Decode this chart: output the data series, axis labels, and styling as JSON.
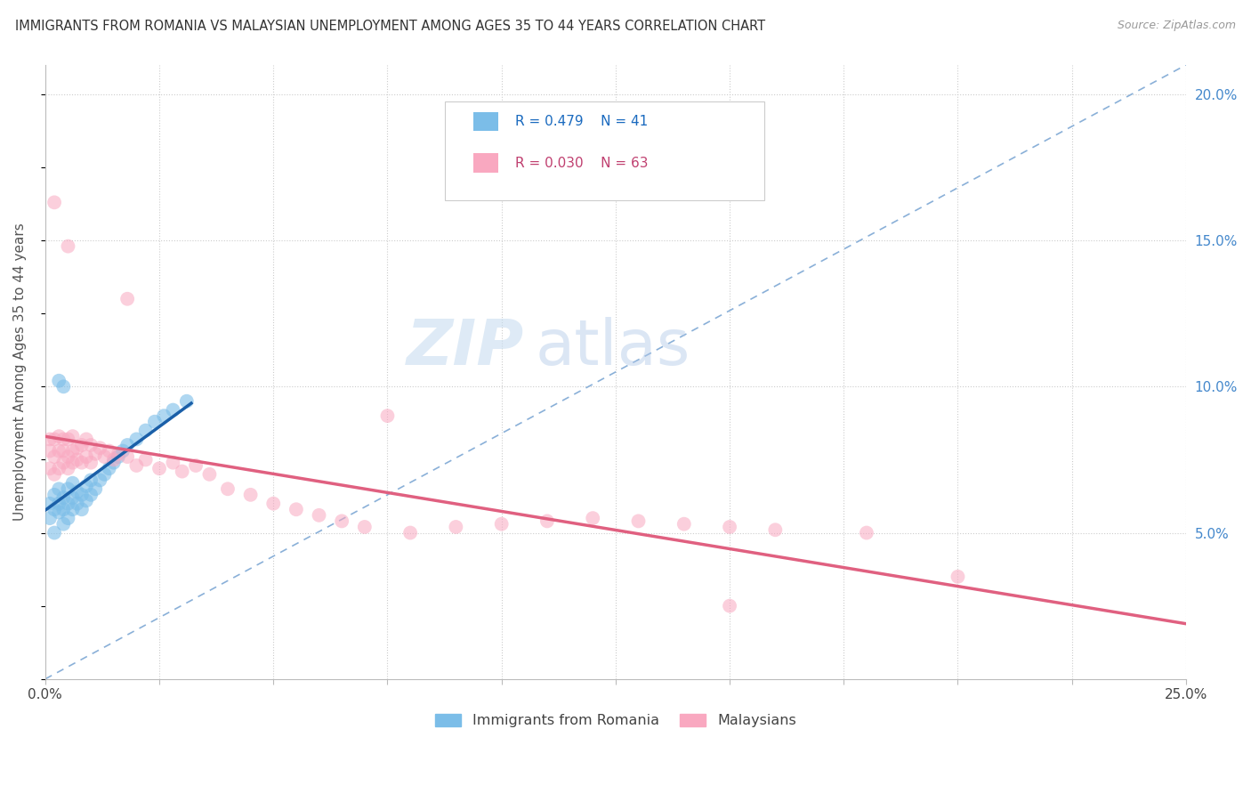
{
  "title": "IMMIGRANTS FROM ROMANIA VS MALAYSIAN UNEMPLOYMENT AMONG AGES 35 TO 44 YEARS CORRELATION CHART",
  "source": "Source: ZipAtlas.com",
  "ylabel": "Unemployment Among Ages 35 to 44 years",
  "xlim": [
    0.0,
    0.25
  ],
  "ylim": [
    0.0,
    0.21
  ],
  "xtick_positions": [
    0.0,
    0.025,
    0.05,
    0.075,
    0.1,
    0.125,
    0.15,
    0.175,
    0.2,
    0.225,
    0.25
  ],
  "xtick_labels": [
    "0.0%",
    "",
    "",
    "",
    "",
    "",
    "",
    "",
    "",
    "",
    "25.0%"
  ],
  "ytick_positions": [
    0.0,
    0.05,
    0.1,
    0.15,
    0.2
  ],
  "ytick_labels_right": [
    "",
    "5.0%",
    "10.0%",
    "15.0%",
    "20.0%"
  ],
  "romania_R": 0.479,
  "romania_N": 41,
  "malaysian_R": 0.03,
  "malaysian_N": 63,
  "romania_color": "#7bbde8",
  "malaysian_color": "#f9a8c0",
  "romania_line_color": "#1a5fa8",
  "malaysian_line_color": "#e06080",
  "diagonal_color": "#8ab0d8",
  "romania_x": [
    0.001,
    0.001,
    0.002,
    0.002,
    0.002,
    0.003,
    0.003,
    0.003,
    0.004,
    0.004,
    0.004,
    0.005,
    0.005,
    0.005,
    0.006,
    0.006,
    0.006,
    0.007,
    0.007,
    0.008,
    0.008,
    0.009,
    0.009,
    0.01,
    0.01,
    0.011,
    0.012,
    0.013,
    0.014,
    0.015,
    0.016,
    0.017,
    0.018,
    0.02,
    0.022,
    0.024,
    0.026,
    0.028,
    0.031,
    0.004,
    0.003
  ],
  "romania_y": [
    0.06,
    0.055,
    0.058,
    0.063,
    0.05,
    0.057,
    0.06,
    0.065,
    0.053,
    0.058,
    0.062,
    0.055,
    0.06,
    0.065,
    0.058,
    0.062,
    0.067,
    0.06,
    0.064,
    0.058,
    0.063,
    0.061,
    0.066,
    0.063,
    0.068,
    0.065,
    0.068,
    0.07,
    0.072,
    0.074,
    0.076,
    0.078,
    0.08,
    0.082,
    0.085,
    0.088,
    0.09,
    0.092,
    0.095,
    0.1,
    0.102
  ],
  "malaysian_x": [
    0.001,
    0.001,
    0.001,
    0.002,
    0.002,
    0.002,
    0.003,
    0.003,
    0.003,
    0.004,
    0.004,
    0.004,
    0.005,
    0.005,
    0.005,
    0.006,
    0.006,
    0.006,
    0.007,
    0.007,
    0.008,
    0.008,
    0.009,
    0.009,
    0.01,
    0.01,
    0.011,
    0.012,
    0.013,
    0.014,
    0.015,
    0.016,
    0.018,
    0.02,
    0.022,
    0.025,
    0.028,
    0.03,
    0.033,
    0.036,
    0.04,
    0.045,
    0.05,
    0.055,
    0.06,
    0.065,
    0.07,
    0.08,
    0.09,
    0.1,
    0.11,
    0.12,
    0.13,
    0.14,
    0.15,
    0.16,
    0.18,
    0.2,
    0.002,
    0.005,
    0.018,
    0.075,
    0.15
  ],
  "malaysian_y": [
    0.072,
    0.078,
    0.082,
    0.07,
    0.076,
    0.082,
    0.072,
    0.078,
    0.083,
    0.074,
    0.078,
    0.082,
    0.072,
    0.076,
    0.082,
    0.074,
    0.078,
    0.083,
    0.075,
    0.079,
    0.074,
    0.08,
    0.076,
    0.082,
    0.074,
    0.08,
    0.077,
    0.079,
    0.076,
    0.078,
    0.075,
    0.077,
    0.076,
    0.073,
    0.075,
    0.072,
    0.074,
    0.071,
    0.073,
    0.07,
    0.065,
    0.063,
    0.06,
    0.058,
    0.056,
    0.054,
    0.052,
    0.05,
    0.052,
    0.053,
    0.054,
    0.055,
    0.054,
    0.053,
    0.052,
    0.051,
    0.05,
    0.035,
    0.163,
    0.148,
    0.13,
    0.09,
    0.025
  ],
  "watermark_zip": "ZIP",
  "watermark_atlas": "atlas"
}
